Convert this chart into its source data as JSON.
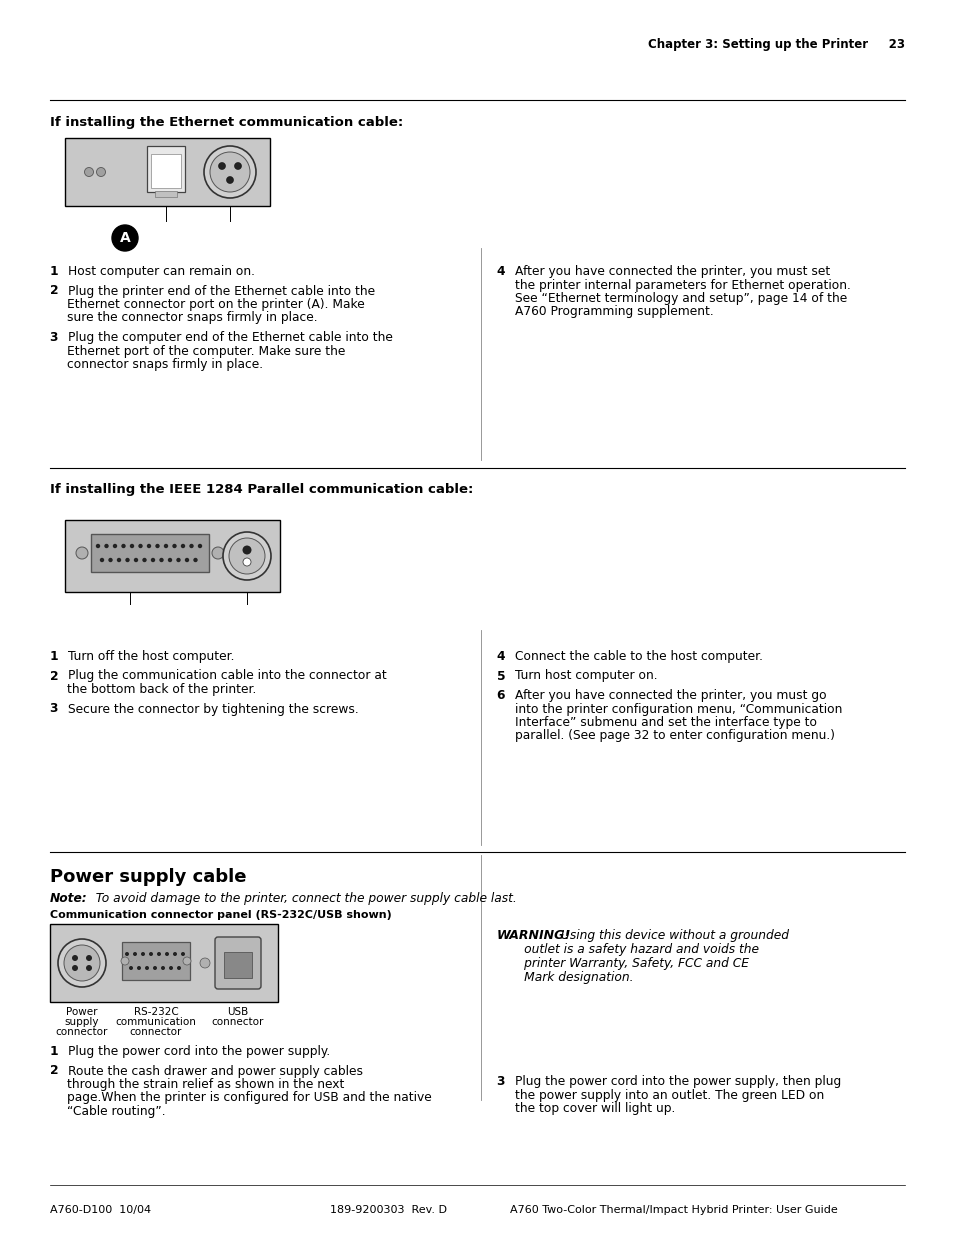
{
  "page_header": "Chapter 3: Setting up the Printer     23",
  "section1_title": "If installing the Ethernet communication cable:",
  "section2_title": "If installing the IEEE 1284 Parallel communication cable:",
  "section3_title": "Power supply cable",
  "section3_note_bold": "Note:",
  "section3_note_italic": "  To avoid damage to the printer, connect the power supply cable last.",
  "section3_panel_label": "Communication connector panel (RS-232C/USB shown)",
  "section3_labels": [
    "Power\nsupply\nconnector",
    "RS-232C\ncommunication\nconnector",
    "USB\nconnector"
  ],
  "section3_warning_bold": "WARNING!",
  "section3_warning_italic": " Using this device without a grounded\n        outlet is a safety hazard and voids the\n        printer Warranty, Safety, FCC and CE\n        Mark designation.",
  "s1_left": [
    "1  Host computer can remain on.",
    "2  Plug the printer end of the Ethernet cable into the\n      Ethernet connector port on the printer (A). Make\n      sure the connector snaps firmly in place.",
    "3  Plug the computer end of the Ethernet cable into the\n      Ethernet port of the computer. Make sure the\n      connector snaps firmly in place."
  ],
  "s1_right": [
    "4  After you have connected the printer, you must set\n      the printer internal parameters for Ethernet operation.\n      See “Ethernet terminology and setup”, page 14 of the\n      A760 Programming supplement."
  ],
  "s2_left": [
    "1  Turn off the host computer.",
    "2  Plug the communication cable into the connector at\n      the bottom back of the printer.",
    "3  Secure the connector by tightening the screws."
  ],
  "s2_right": [
    "4  Connect the cable to the host computer.",
    "5  Turn host computer on.",
    "6  After you have connected the printer, you must go\n      into the printer configuration menu, “Communication\n      Interface” submenu and set the interface type to\n      parallel. (See page 32 to enter configuration menu.)"
  ],
  "s3_left": [
    "1  Plug the power cord into the power supply.",
    "2  Route the cash drawer and power supply cables\n      through the strain relief as shown in the next\n      page.When the printer is configured for USB and the native\n      “Cable routing”."
  ],
  "s3_right": [
    "3  Plug the power cord into the power supply, then plug\n      the power supply into an outlet. The green LED on\n      the top cover will light up."
  ],
  "footer_left": "A760-D100  10/04",
  "footer_mid": "189-9200303  Rev. D",
  "footer_right": "A760 Two-Color Thermal/Impact Hybrid Printer: User Guide"
}
